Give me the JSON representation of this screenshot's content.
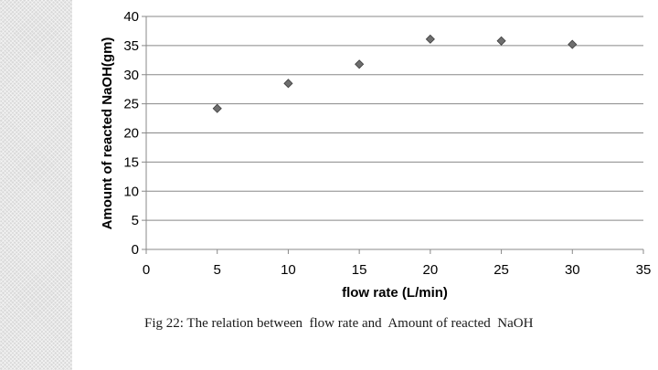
{
  "caption": "Fig 22: The relation between  flow rate and  Amount of reacted  NaOH",
  "chart_data": {
    "type": "scatter",
    "xlabel": "flow rate (L/min)",
    "ylabel": "Amount of reacted  NaOH(gm)",
    "xlim": [
      0,
      35
    ],
    "ylim": [
      0,
      40
    ],
    "xticks": [
      0,
      5,
      10,
      15,
      20,
      25,
      30,
      35
    ],
    "yticks": [
      0,
      5,
      10,
      15,
      20,
      25,
      30,
      35,
      40
    ],
    "grid": "horizontal",
    "marker": "diamond",
    "marker_color": "#6e6e6e",
    "series": [
      {
        "x": [
          5,
          10,
          15,
          20,
          25,
          30
        ],
        "y": [
          24.2,
          28.5,
          31.8,
          36.1,
          35.8,
          35.2
        ]
      }
    ]
  }
}
